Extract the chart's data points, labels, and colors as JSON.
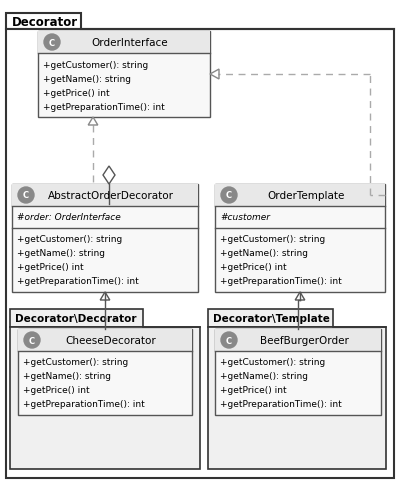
{
  "bg": "#ffffff",
  "outer_label": "Decorator",
  "classes": {
    "OrderInterface": {
      "title": "OrderInterface",
      "fields": [],
      "methods": [
        "+getCustomer(): string",
        "+getName(): string",
        "+getPrice() int",
        "+getPreparationTime(): int"
      ]
    },
    "AbstractOrderDecorator": {
      "title": "AbstractOrderDecorator",
      "fields": [
        "#order: OrderInterface"
      ],
      "methods": [
        "+getCustomer(): string",
        "+getName(): string",
        "+getPrice() int",
        "+getPreparationTime(): int"
      ]
    },
    "OrderTemplate": {
      "title": "OrderTemplate",
      "fields": [
        "#customer"
      ],
      "methods": [
        "+getCustomer(): string",
        "+getName(): string",
        "+getPrice() int",
        "+getPreparationTime(): int"
      ]
    },
    "CheeseDecorator": {
      "title": "CheeseDecorator",
      "fields": [],
      "methods": [
        "+getCustomer(): string",
        "+getName(): string",
        "+getPrice() int",
        "+getPreparationTime(): int"
      ]
    },
    "BeefBurgerOrder": {
      "title": "BeefBurgerOrder",
      "fields": [],
      "methods": [
        "+getCustomer(): string",
        "+getName(): string",
        "+getPrice() int",
        "+getPreparationTime(): int"
      ]
    }
  },
  "ns1_label": "Decorator\\Decorator",
  "ns2_label": "Decorator\\Template",
  "hdr_fill": "#e8e8e8",
  "box_fill": "#f8f8f8",
  "ns_fill": "#f0f0f0",
  "circle_fill": "#888888",
  "line_color": "#555555",
  "dash_color": "#aaaaaa",
  "text_color": "#000000"
}
